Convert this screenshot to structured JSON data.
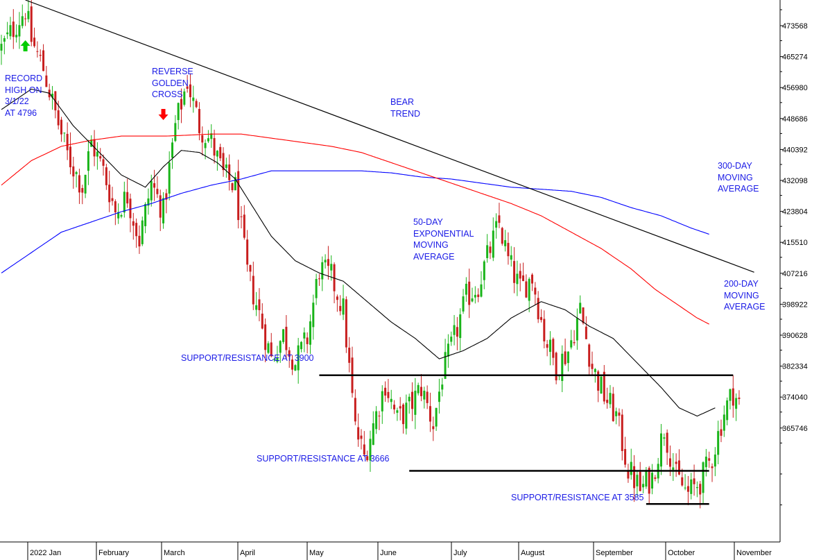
{
  "chart_data": {
    "type": "candlestick",
    "y_axis": {
      "side": "right",
      "ticks": [
        "473568",
        "465274",
        "456980",
        "448686",
        "440392",
        "432098",
        "423804",
        "415510",
        "407216",
        "398922",
        "390628",
        "382334",
        "374040",
        "365746"
      ]
    },
    "x_axis": {
      "months": [
        "2022 Jan",
        "February",
        "March",
        "April",
        "May",
        "June",
        "July",
        "August",
        "September",
        "October",
        "November"
      ]
    },
    "price_range": {
      "low": 3492,
      "high": 4818
    },
    "colors": {
      "up": "#19b419",
      "down": "#c81e1e",
      "ma50": "#000000",
      "ma200": "#ff0000",
      "ma300": "#0000ff",
      "trend": "#000000",
      "support": "#000000",
      "annotation": "#1a1ae6"
    },
    "candle_anchors": [
      [
        0,
        4700
      ],
      [
        5,
        4760
      ],
      [
        8,
        4796
      ],
      [
        10,
        4720
      ],
      [
        14,
        4650
      ],
      [
        18,
        4540
      ],
      [
        22,
        4440
      ],
      [
        27,
        4360
      ],
      [
        30,
        4470
      ],
      [
        34,
        4400
      ],
      [
        38,
        4300
      ],
      [
        42,
        4340
      ],
      [
        46,
        4230
      ],
      [
        50,
        4370
      ],
      [
        54,
        4300
      ],
      [
        58,
        4510
      ],
      [
        62,
        4620
      ],
      [
        66,
        4510
      ],
      [
        70,
        4470
      ],
      [
        74,
        4390
      ],
      [
        78,
        4360
      ],
      [
        82,
        4150
      ],
      [
        86,
        4050
      ],
      [
        90,
        3940
      ],
      [
        94,
        4000
      ],
      [
        98,
        3930
      ],
      [
        102,
        3990
      ],
      [
        106,
        4160
      ],
      [
        110,
        4140
      ],
      [
        114,
        4060
      ],
      [
        118,
        3770
      ],
      [
        121,
        3700
      ],
      [
        124,
        3780
      ],
      [
        128,
        3880
      ],
      [
        132,
        3790
      ],
      [
        136,
        3820
      ],
      [
        140,
        3870
      ],
      [
        144,
        3780
      ],
      [
        147,
        3900
      ],
      [
        151,
        3990
      ],
      [
        155,
        4090
      ],
      [
        159,
        4120
      ],
      [
        163,
        4210
      ],
      [
        166,
        4270
      ],
      [
        169,
        4180
      ],
      [
        173,
        4110
      ],
      [
        177,
        4140
      ],
      [
        181,
        4000
      ],
      [
        185,
        3920
      ],
      [
        189,
        3960
      ],
      [
        193,
        4060
      ],
      [
        197,
        3920
      ],
      [
        201,
        3850
      ],
      [
        205,
        3800
      ],
      [
        209,
        3670
      ],
      [
        213,
        3620
      ],
      [
        217,
        3650
      ],
      [
        221,
        3770
      ],
      [
        225,
        3650
      ],
      [
        229,
        3610
      ],
      [
        233,
        3640
      ],
      [
        237,
        3700
      ],
      [
        241,
        3810
      ],
      [
        244,
        3860
      ],
      [
        246,
        3830
      ]
    ],
    "ma50_anchors": [
      [
        0,
        4550
      ],
      [
        10,
        4600
      ],
      [
        16,
        4590
      ],
      [
        24,
        4510
      ],
      [
        32,
        4450
      ],
      [
        40,
        4390
      ],
      [
        48,
        4360
      ],
      [
        54,
        4410
      ],
      [
        60,
        4450
      ],
      [
        66,
        4445
      ],
      [
        72,
        4420
      ],
      [
        78,
        4380
      ],
      [
        84,
        4310
      ],
      [
        90,
        4240
      ],
      [
        98,
        4180
      ],
      [
        106,
        4150
      ],
      [
        114,
        4130
      ],
      [
        122,
        4080
      ],
      [
        130,
        4030
      ],
      [
        138,
        3990
      ],
      [
        146,
        3940
      ],
      [
        154,
        3960
      ],
      [
        162,
        3990
      ],
      [
        170,
        4040
      ],
      [
        180,
        4080
      ],
      [
        188,
        4060
      ],
      [
        196,
        4020
      ],
      [
        204,
        3990
      ],
      [
        212,
        3930
      ],
      [
        220,
        3870
      ],
      [
        226,
        3820
      ],
      [
        232,
        3800
      ],
      [
        238,
        3820
      ]
    ],
    "ma200_anchors": [
      [
        0,
        4365
      ],
      [
        10,
        4425
      ],
      [
        20,
        4460
      ],
      [
        30,
        4475
      ],
      [
        40,
        4485
      ],
      [
        55,
        4485
      ],
      [
        70,
        4490
      ],
      [
        80,
        4490
      ],
      [
        90,
        4480
      ],
      [
        100,
        4470
      ],
      [
        110,
        4460
      ],
      [
        120,
        4445
      ],
      [
        130,
        4420
      ],
      [
        140,
        4395
      ],
      [
        150,
        4370
      ],
      [
        160,
        4345
      ],
      [
        170,
        4320
      ],
      [
        180,
        4290
      ],
      [
        190,
        4250
      ],
      [
        200,
        4210
      ],
      [
        210,
        4160
      ],
      [
        218,
        4110
      ],
      [
        226,
        4070
      ],
      [
        232,
        4040
      ],
      [
        236,
        4025
      ]
    ],
    "ma300_anchors": [
      [
        0,
        4150
      ],
      [
        10,
        4200
      ],
      [
        20,
        4250
      ],
      [
        30,
        4275
      ],
      [
        40,
        4300
      ],
      [
        50,
        4320
      ],
      [
        60,
        4345
      ],
      [
        70,
        4365
      ],
      [
        80,
        4380
      ],
      [
        90,
        4400
      ],
      [
        100,
        4400
      ],
      [
        110,
        4400
      ],
      [
        120,
        4400
      ],
      [
        130,
        4395
      ],
      [
        140,
        4385
      ],
      [
        150,
        4380
      ],
      [
        160,
        4370
      ],
      [
        170,
        4360
      ],
      [
        180,
        4355
      ],
      [
        190,
        4350
      ],
      [
        200,
        4335
      ],
      [
        210,
        4310
      ],
      [
        220,
        4290
      ],
      [
        230,
        4260
      ],
      [
        236,
        4245
      ]
    ],
    "trend_line": {
      "x_from": 8,
      "x_to": 251,
      "y_from": 4818,
      "y_to": 4152
    },
    "support_lines": [
      {
        "label": "SUPPORT/RESISTANCE AT 3900",
        "level": 3900,
        "x_from": 106,
        "x_to": 244
      },
      {
        "label": "SUPPORT/RESISTANCE AT 3666",
        "level": 3666,
        "x_from": 136,
        "x_to": 236
      },
      {
        "label": "SUPPORT/RESISTANCE AT 3585",
        "level": 3585,
        "x_from": 215,
        "x_to": 236
      }
    ],
    "markers": [
      {
        "name": "record-high-arrow",
        "direction": "up",
        "x": 8,
        "color": "#00cc00"
      },
      {
        "name": "reverse-golden-cross-arrow",
        "direction": "down",
        "x": 54,
        "color": "#ff0000"
      }
    ],
    "annotations": [
      {
        "name": "record-high-note",
        "text": "RECORD\nHIGH ON\n3/1/22\nAT 4796"
      },
      {
        "name": "reverse-golden-cross-note",
        "text": "REVERSE\nGOLDEN\nCROSS"
      },
      {
        "name": "bear-trend-note",
        "text": "BEAR\nTREND"
      },
      {
        "name": "ma300-note",
        "text": "300-DAY\nMOVING\nAVERAGE"
      },
      {
        "name": "ma50-note",
        "text": "50-DAY\nEXPONENTIAL\nMOVING\nAVERAGE"
      },
      {
        "name": "ma200-note",
        "text": "200-DAY\nMOVING\nAVERAGE"
      }
    ]
  }
}
